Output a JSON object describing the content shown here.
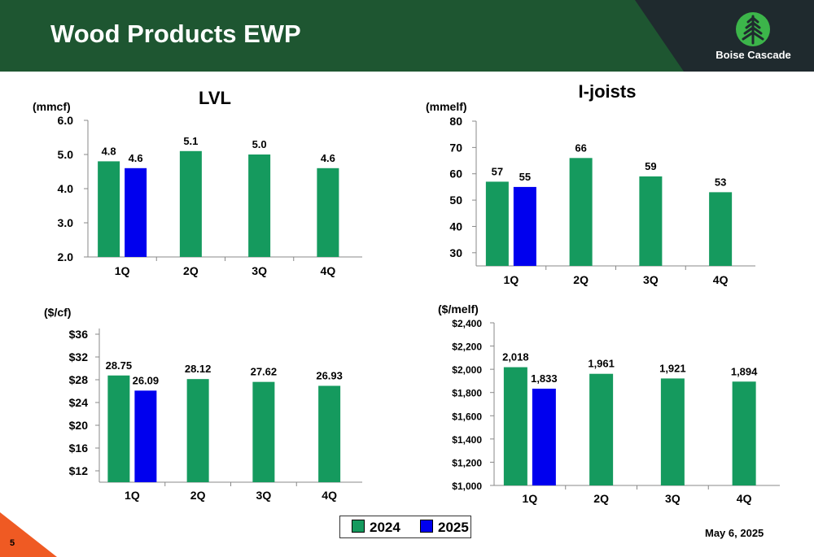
{
  "header": {
    "title": "Wood Products EWP",
    "logo_text": "Boise Cascade"
  },
  "footer": {
    "date": "May 6, 2025",
    "page_number": "5"
  },
  "legend": [
    {
      "label": "2024",
      "color": "#159a5e"
    },
    {
      "label": "2025",
      "color": "#0000ee"
    }
  ],
  "chart_data": [
    {
      "type": "bar",
      "title": "LVL",
      "ylabel": "(mmcf)",
      "categories": [
        "1Q",
        "2Q",
        "3Q",
        "4Q"
      ],
      "series": [
        {
          "name": "2024",
          "values": [
            4.8,
            5.1,
            5.0,
            4.6
          ],
          "labels": [
            "4.8",
            "5.1",
            "5.0",
            "4.6"
          ]
        },
        {
          "name": "2025",
          "values": [
            4.6,
            null,
            null,
            null
          ],
          "labels": [
            "4.6",
            "",
            "",
            ""
          ]
        }
      ],
      "ylim": [
        2.0,
        6.0
      ],
      "yticks": [
        2.0,
        3.0,
        4.0,
        5.0,
        6.0
      ],
      "ytick_labels": [
        "2.0",
        "3.0",
        "4.0",
        "5.0",
        "6.0"
      ]
    },
    {
      "type": "bar",
      "title": "I-joists",
      "ylabel": "(mmelf)",
      "categories": [
        "1Q",
        "2Q",
        "3Q",
        "4Q"
      ],
      "series": [
        {
          "name": "2024",
          "values": [
            57,
            66,
            59,
            53
          ],
          "labels": [
            "57",
            "66",
            "59",
            "53"
          ]
        },
        {
          "name": "2025",
          "values": [
            55,
            null,
            null,
            null
          ],
          "labels": [
            "55",
            "",
            "",
            ""
          ]
        }
      ],
      "ylim": [
        25,
        80
      ],
      "yticks": [
        30,
        40,
        50,
        60,
        70,
        80
      ],
      "ytick_labels": [
        "30",
        "40",
        "50",
        "60",
        "70",
        "80"
      ]
    },
    {
      "type": "bar",
      "title": "",
      "ylabel": "($/cf)",
      "categories": [
        "1Q",
        "2Q",
        "3Q",
        "4Q"
      ],
      "series": [
        {
          "name": "2024",
          "values": [
            28.75,
            28.12,
            27.62,
            26.93
          ],
          "labels": [
            "28.75",
            "28.12",
            "27.62",
            "26.93"
          ]
        },
        {
          "name": "2025",
          "values": [
            26.09,
            null,
            null,
            null
          ],
          "labels": [
            "26.09",
            "",
            "",
            ""
          ]
        }
      ],
      "ylim": [
        10,
        37
      ],
      "yticks": [
        12,
        16,
        20,
        24,
        28,
        32,
        36
      ],
      "ytick_labels": [
        "$12",
        "$16",
        "$20",
        "$24",
        "$28",
        "$32",
        "$36"
      ]
    },
    {
      "type": "bar",
      "title": "",
      "ylabel": "($/melf)",
      "categories": [
        "1Q",
        "2Q",
        "3Q",
        "4Q"
      ],
      "series": [
        {
          "name": "2024",
          "values": [
            2018,
            1961,
            1921,
            1894
          ],
          "labels": [
            "2,018",
            "1,961",
            "1,921",
            "1,894"
          ]
        },
        {
          "name": "2025",
          "values": [
            1833,
            null,
            null,
            null
          ],
          "labels": [
            "1,833",
            "",
            "",
            ""
          ]
        }
      ],
      "ylim": [
        1000,
        2400
      ],
      "yticks": [
        1000,
        1200,
        1400,
        1600,
        1800,
        2000,
        2200,
        2400
      ],
      "ytick_labels": [
        "$1,000",
        "$1,200",
        "$1,400",
        "$1,600",
        "$1,800",
        "$2,000",
        "$2,200",
        "$2,400"
      ]
    }
  ]
}
